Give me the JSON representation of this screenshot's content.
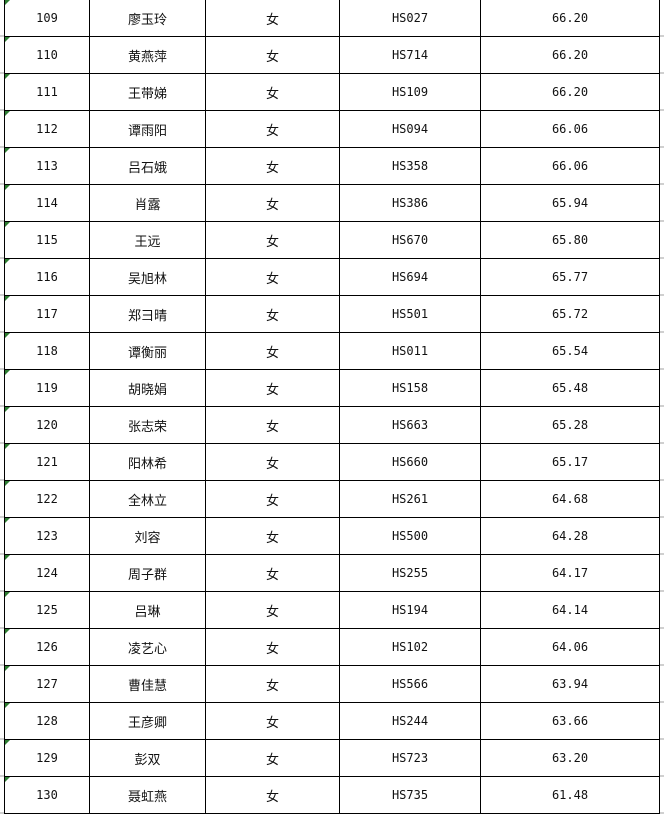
{
  "accent_colors": {
    "error_indicator": "#2e7d32",
    "border": "#000000"
  },
  "rows": [
    {
      "no": "109",
      "name": "廖玉玲",
      "gender": "女",
      "id": "HS027",
      "score": "66.20"
    },
    {
      "no": "110",
      "name": "黄燕萍",
      "gender": "女",
      "id": "HS714",
      "score": "66.20"
    },
    {
      "no": "111",
      "name": "王带娣",
      "gender": "女",
      "id": "HS109",
      "score": "66.20"
    },
    {
      "no": "112",
      "name": "谭雨阳",
      "gender": "女",
      "id": "HS094",
      "score": "66.06"
    },
    {
      "no": "113",
      "name": "吕石娥",
      "gender": "女",
      "id": "HS358",
      "score": "66.06"
    },
    {
      "no": "114",
      "name": "肖露",
      "gender": "女",
      "id": "HS386",
      "score": "65.94"
    },
    {
      "no": "115",
      "name": "王远",
      "gender": "女",
      "id": "HS670",
      "score": "65.80"
    },
    {
      "no": "116",
      "name": "吴旭林",
      "gender": "女",
      "id": "HS694",
      "score": "65.77"
    },
    {
      "no": "117",
      "name": "郑彐晴",
      "gender": "女",
      "id": "HS501",
      "score": "65.72"
    },
    {
      "no": "118",
      "name": "谭衡丽",
      "gender": "女",
      "id": "HS011",
      "score": "65.54"
    },
    {
      "no": "119",
      "name": "胡晓娟",
      "gender": "女",
      "id": "HS158",
      "score": "65.48"
    },
    {
      "no": "120",
      "name": "张志荣",
      "gender": "女",
      "id": "HS663",
      "score": "65.28"
    },
    {
      "no": "121",
      "name": "阳林希",
      "gender": "女",
      "id": "HS660",
      "score": "65.17"
    },
    {
      "no": "122",
      "name": "全林立",
      "gender": "女",
      "id": "HS261",
      "score": "64.68"
    },
    {
      "no": "123",
      "name": "刘容",
      "gender": "女",
      "id": "HS500",
      "score": "64.28"
    },
    {
      "no": "124",
      "name": "周子群",
      "gender": "女",
      "id": "HS255",
      "score": "64.17"
    },
    {
      "no": "125",
      "name": "吕琳",
      "gender": "女",
      "id": "HS194",
      "score": "64.14"
    },
    {
      "no": "126",
      "name": "凌艺心",
      "gender": "女",
      "id": "HS102",
      "score": "64.06"
    },
    {
      "no": "127",
      "name": "曹佳慧",
      "gender": "女",
      "id": "HS566",
      "score": "63.94"
    },
    {
      "no": "128",
      "name": "王彦卿",
      "gender": "女",
      "id": "HS244",
      "score": "63.66"
    },
    {
      "no": "129",
      "name": "彭双",
      "gender": "女",
      "id": "HS723",
      "score": "63.20"
    },
    {
      "no": "130",
      "name": "聂虹燕",
      "gender": "女",
      "id": "HS735",
      "score": "61.48"
    }
  ]
}
